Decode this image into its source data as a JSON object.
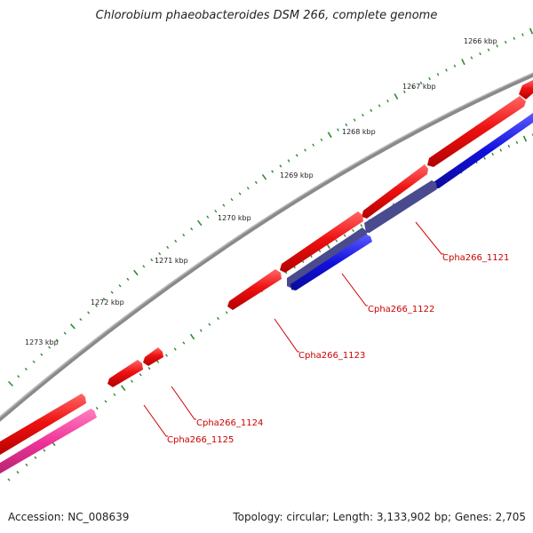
{
  "title": "Chlorobium phaeobacteroides DSM 266, complete genome",
  "accession": "Accession: NC_008639",
  "summary": "Topology: circular; Length: 3,133,902 bp; Genes: 2,705",
  "colors": {
    "backbone": "#8a8a8a",
    "forward_gene": "#ee1111",
    "reverse_gene": "#1111dd",
    "reverse_gene_highlight": "#4a4a8f",
    "pink_gene": "#ee3399",
    "tick": "#2f8a2f",
    "label": "#cc0000"
  },
  "kbp_ticks": [
    {
      "label": "1266 kbp"
    },
    {
      "label": "1267 kbp"
    },
    {
      "label": "1268 kbp"
    },
    {
      "label": "1269 kbp"
    },
    {
      "label": "1270 kbp"
    },
    {
      "label": "1271 kbp"
    },
    {
      "label": "1272 kbp"
    },
    {
      "label": "1273 kbp"
    }
  ],
  "gene_labels": [
    {
      "label": "Cpha266_1121"
    },
    {
      "label": "Cpha266_1122"
    },
    {
      "label": "Cpha266_1123"
    },
    {
      "label": "Cpha266_1124"
    },
    {
      "label": "Cpha266_1125"
    }
  ]
}
